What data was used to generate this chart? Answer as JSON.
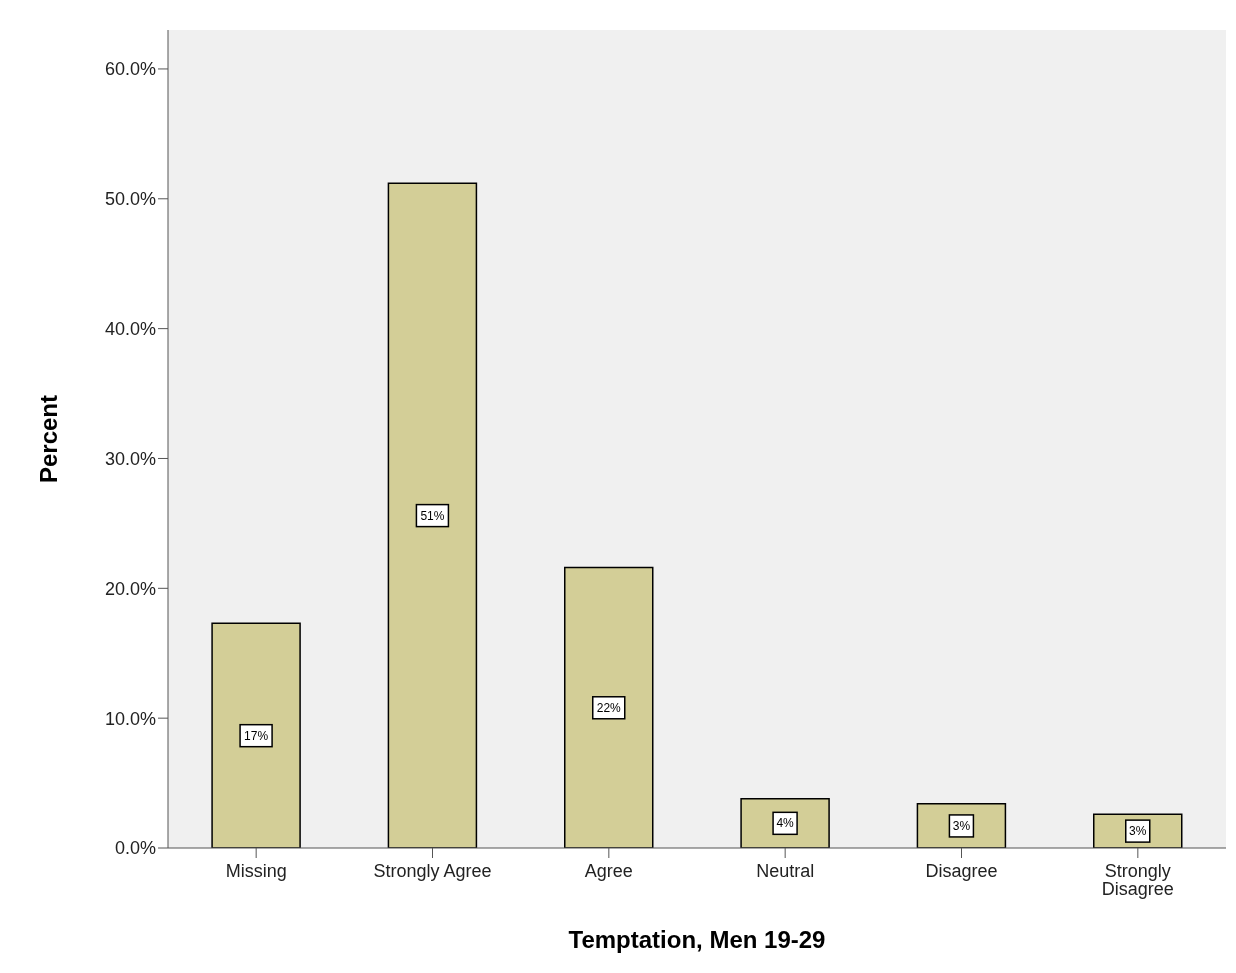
{
  "chart_data": {
    "type": "bar",
    "xlabel": "Temptation, Men 19-29",
    "ylabel": "Percent",
    "categories": [
      "Missing",
      "Strongly Agree",
      "Agree",
      "Neutral",
      "Disagree",
      "Strongly Disagree"
    ],
    "values": [
      17.3,
      51.2,
      21.6,
      3.8,
      3.4,
      2.6
    ],
    "value_labels": [
      "17%",
      "51%",
      "22%",
      "4%",
      "3%",
      "3%"
    ],
    "color": "#d3ce97",
    "ylim": [
      0,
      63
    ],
    "yticks": [
      {
        "value": 0,
        "label": "0.0%"
      },
      {
        "value": 10,
        "label": "10.0%"
      },
      {
        "value": 20,
        "label": "20.0%"
      },
      {
        "value": 30,
        "label": "30.0%"
      },
      {
        "value": 40,
        "label": "40.0%"
      },
      {
        "value": 50,
        "label": "50.0%"
      },
      {
        "value": 60,
        "label": "60.0%"
      }
    ],
    "grid": false
  }
}
